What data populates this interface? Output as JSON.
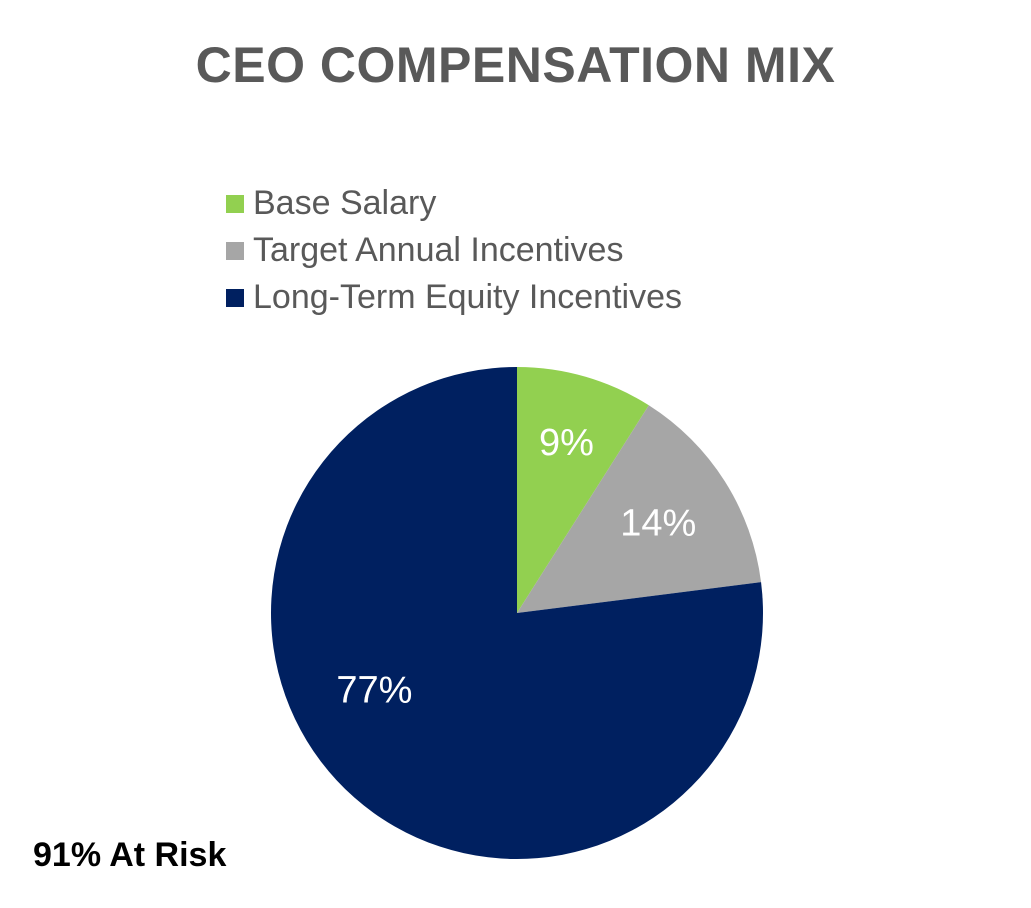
{
  "chart_data": {
    "type": "pie",
    "title": "CEO COMPENSATION MIX",
    "legend_position": "top",
    "slices": [
      {
        "name": "Base Salary",
        "value": 9,
        "label": "9%",
        "color": "#92D050"
      },
      {
        "name": "Target Annual Incentives",
        "value": 14,
        "label": "14%",
        "color": "#A6A6A6"
      },
      {
        "name": "Long-Term Equity Incentives",
        "value": 77,
        "label": "77%",
        "color": "#002060"
      }
    ],
    "label_color": "#FFFFFF",
    "annotation": "91% At Risk"
  }
}
